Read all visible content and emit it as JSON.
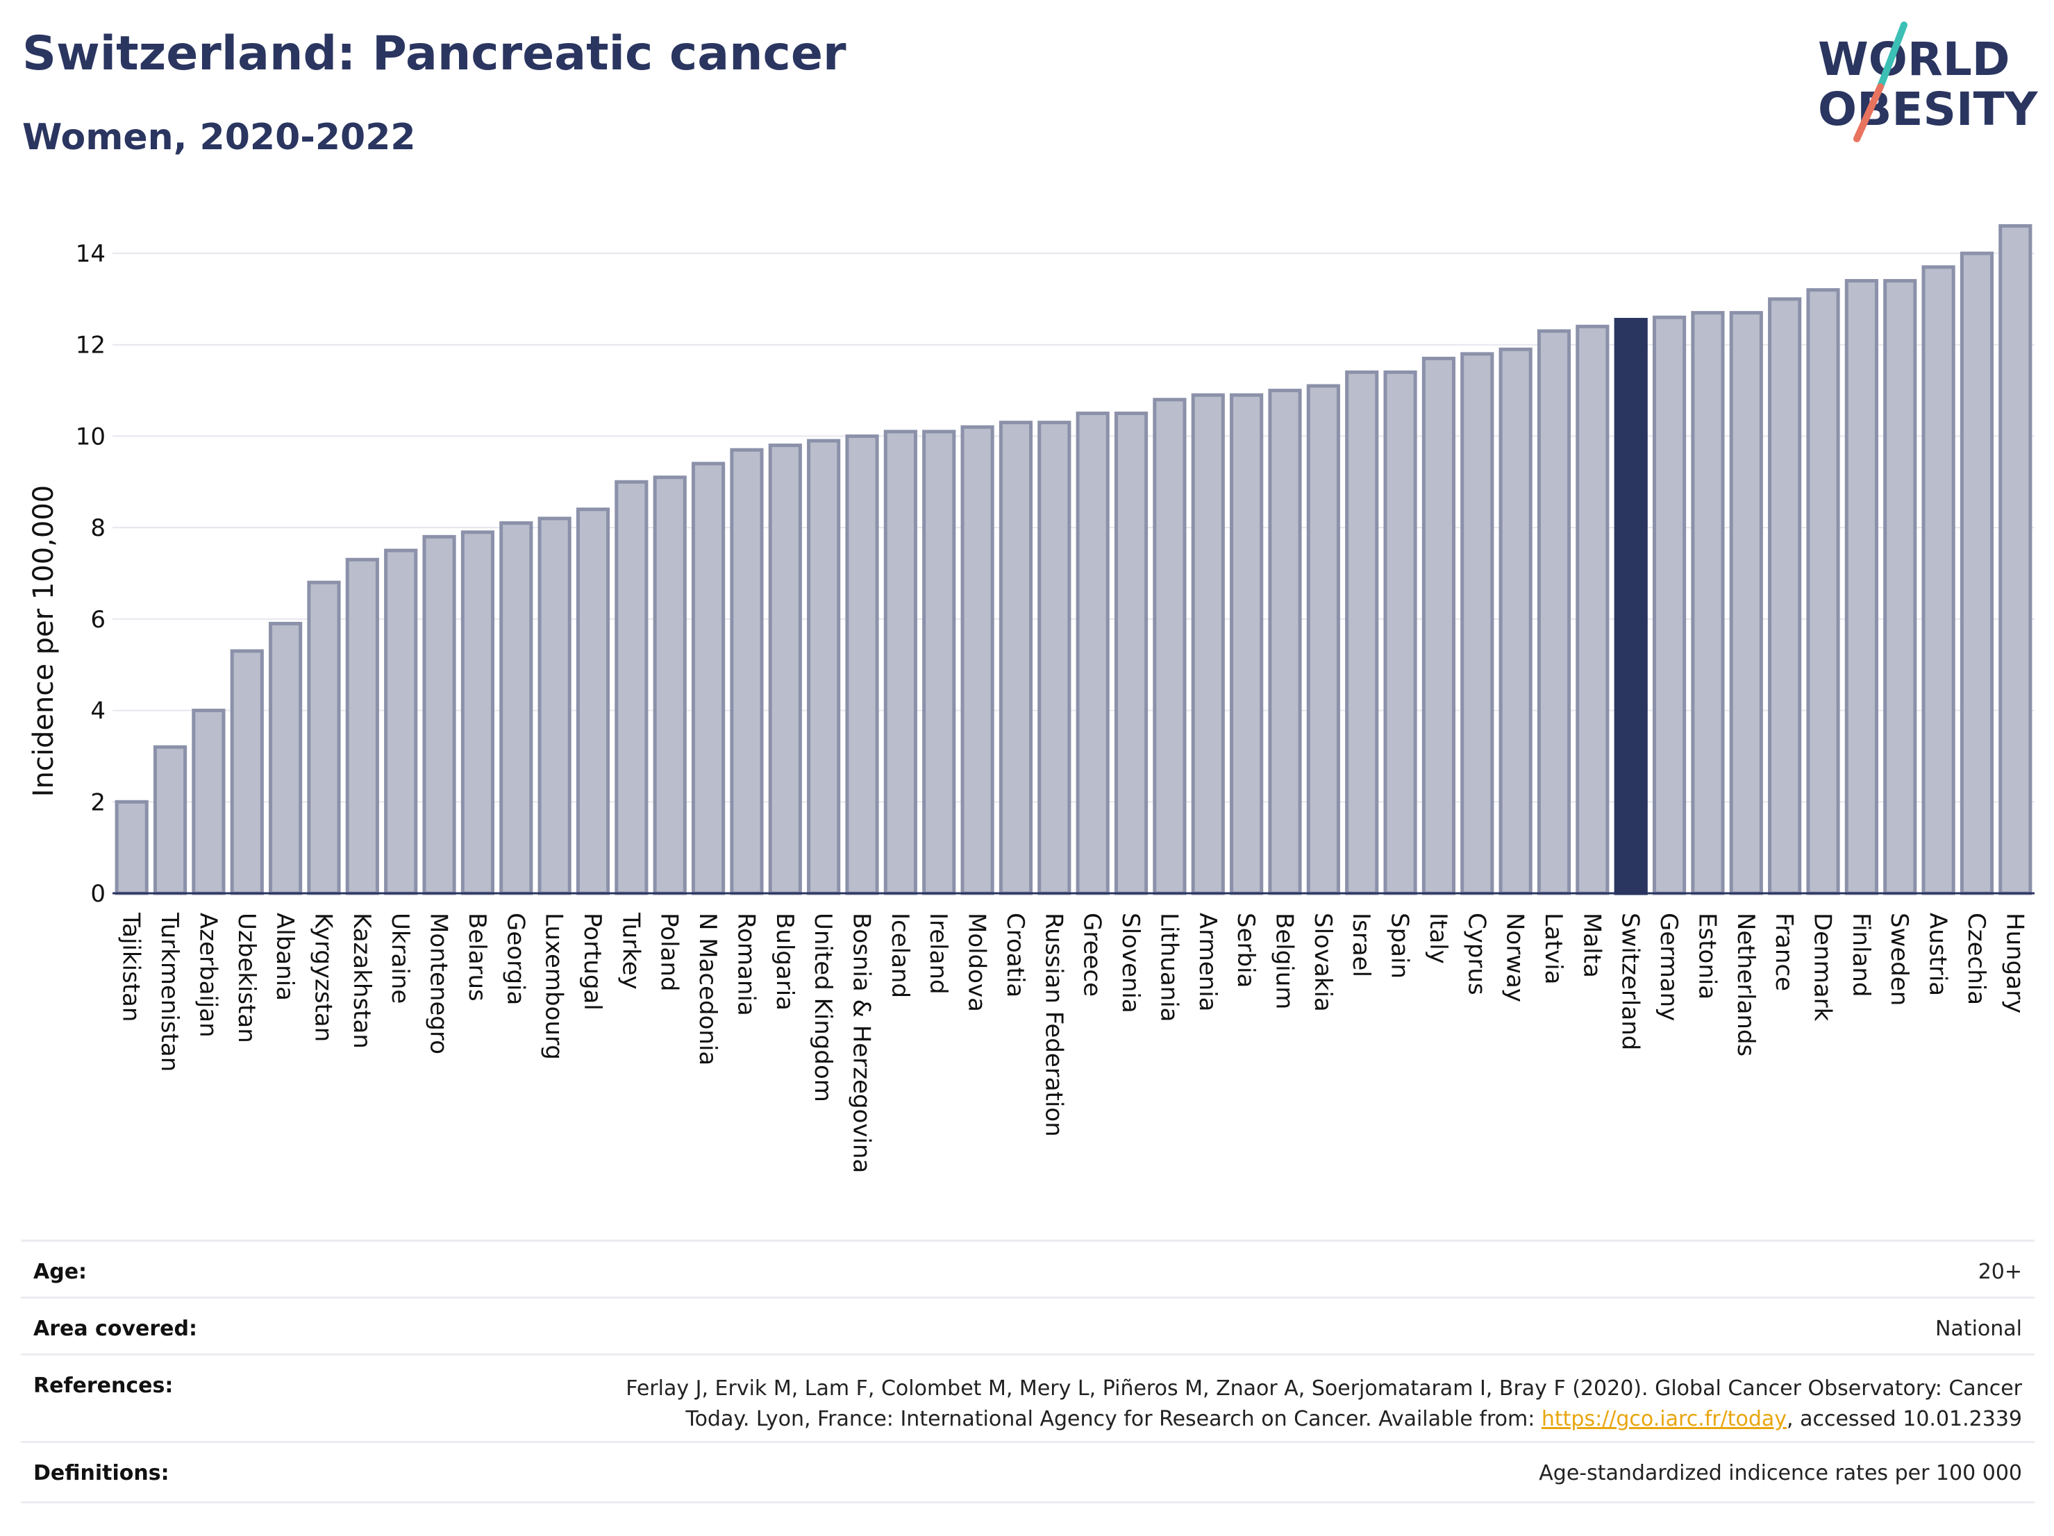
{
  "header": {
    "title": "Switzerland: Pancreatic cancer",
    "subtitle": "Women, 2020-2022"
  },
  "logo": {
    "line1": "WORLD",
    "line2": "OBESITY",
    "accent_teal": "#3cbfb4",
    "accent_coral": "#e8735e"
  },
  "colors": {
    "bar": "#b9bdcc",
    "bar_stroke": "#8c91aa",
    "highlight": "#2a3560",
    "grid": "#e6e7ee",
    "text": "#2a3560"
  },
  "chart_data": {
    "type": "bar",
    "ylabel": "Incidence per 100,000",
    "ylim": [
      0,
      15
    ],
    "yticks": [
      0,
      2,
      4,
      6,
      8,
      10,
      12,
      14
    ],
    "highlight": "Switzerland",
    "categories": [
      "Tajikistan",
      "Turkmenistan",
      "Azerbaijan",
      "Uzbekistan",
      "Albania",
      "Kyrgyzstan",
      "Kazakhstan",
      "Ukraine",
      "Montenegro",
      "Belarus",
      "Georgia",
      "Luxembourg",
      "Portugal",
      "Turkey",
      "Poland",
      "N Macedonia",
      "Romania",
      "Bulgaria",
      "United Kingdom",
      "Bosnia & Herzegovina",
      "Iceland",
      "Ireland",
      "Moldova",
      "Croatia",
      "Russian Federation",
      "Greece",
      "Slovenia",
      "Lithuania",
      "Armenia",
      "Serbia",
      "Belgium",
      "Slovakia",
      "Israel",
      "Spain",
      "Italy",
      "Cyprus",
      "Norway",
      "Latvia",
      "Malta",
      "Switzerland",
      "Germany",
      "Estonia",
      "Netherlands",
      "France",
      "Denmark",
      "Finland",
      "Sweden",
      "Austria",
      "Czechia",
      "Hungary"
    ],
    "values": [
      2.0,
      3.2,
      4.0,
      5.3,
      5.9,
      6.8,
      7.3,
      7.5,
      7.8,
      7.9,
      8.1,
      8.2,
      8.4,
      9.0,
      9.1,
      9.4,
      9.7,
      9.8,
      9.9,
      10.0,
      10.1,
      10.1,
      10.2,
      10.3,
      10.3,
      10.5,
      10.5,
      10.8,
      10.9,
      10.9,
      11.0,
      11.1,
      11.4,
      11.4,
      11.7,
      11.8,
      11.9,
      12.3,
      12.4,
      12.55,
      12.6,
      12.7,
      12.7,
      13.0,
      13.2,
      13.4,
      13.4,
      13.7,
      14.0,
      14.6
    ],
    "grid": true,
    "legend": "none"
  },
  "meta": {
    "age_label": "Age:",
    "age_value": "20+",
    "area_label": "Area covered:",
    "area_value": "National",
    "references_label": "References:",
    "references_line1": "Ferlay J, Ervik M, Lam F, Colombet M, Mery L, Piñeros M, Znaor A, Soerjomataram I, Bray F (2020). Global Cancer Observatory: Cancer",
    "references_line2_pre": "Today. Lyon, France: International Agency for Research on Cancer. Available from: ",
    "references_link": "https://gco.iarc.fr/today",
    "references_line2_post": ", accessed 10.01.2339",
    "definitions_label": "Definitions:",
    "definitions_value": "Age-standardized indicence rates per 100 000"
  }
}
